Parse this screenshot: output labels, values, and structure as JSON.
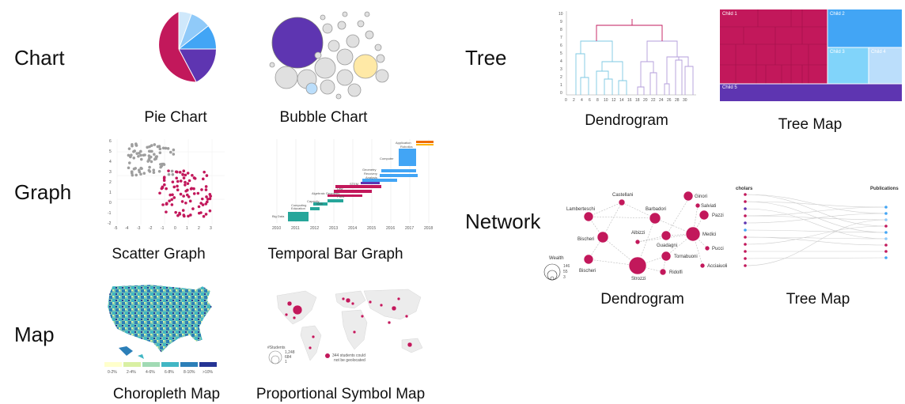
{
  "categories": {
    "chart": "Chart",
    "graph": "Graph",
    "map": "Map",
    "tree": "Tree",
    "network": "Network"
  },
  "captions": {
    "pie": "Pie Chart",
    "bubble": "Bubble Chart",
    "scatter": "Scatter Graph",
    "temporal": "Temporal Bar Graph",
    "choropleth": "Choropleth Map",
    "proportional": "Proportional Symbol Map",
    "dendrogram": "Dendrogram",
    "treemap": "Tree Map",
    "network_dendrogram": "Dendrogram",
    "network_treemap": "Tree Map"
  },
  "colors": {
    "crimson": "#c2185b",
    "purple": "#5e35b1",
    "blue": "#42a5f5",
    "lightblue": "#90caf9",
    "gray": "#bdbdbd",
    "teal": "#26a69a",
    "orange": "#ef6c00"
  },
  "temporal": {
    "years": [
      "2010",
      "2011",
      "2012",
      "2013",
      "2014",
      "2015",
      "2016",
      "2017",
      "2018"
    ],
    "labels": [
      "Big Data",
      "Computing Education",
      "Capacity Web",
      "Algebraic Geometry Parts",
      "Law STEM",
      "Geometry Recovery Analysis",
      "Computer",
      "Application Robotics"
    ]
  },
  "choropleth": {
    "legend": [
      "0-2%",
      "2-4%",
      "4-6%",
      "6-8%",
      "8-10%",
      ">10%"
    ]
  },
  "proportional": {
    "legend_title": "#Students",
    "legend_values": [
      "1,248",
      "684",
      "1"
    ],
    "note": "344 students could not be geolocated"
  },
  "dendrogram": {
    "y_ticks": [
      "10",
      "9",
      "8",
      "7",
      "6",
      "5",
      "4",
      "3",
      "2",
      "1",
      "0"
    ],
    "x_ticks": [
      "0",
      "2",
      "4",
      "6",
      "8",
      "10",
      "12",
      "14",
      "16",
      "18",
      "20",
      "22",
      "24",
      "26",
      "28",
      "30"
    ]
  },
  "treemap": {
    "labels": [
      "Child 1",
      "Child 2",
      "Child 3",
      "Child 4",
      "Child 5"
    ]
  },
  "network": {
    "nodes": [
      "Castellani",
      "Ginori",
      "Lamberteschi",
      "Barbadori",
      "Salviati",
      "Pazzi",
      "Albizzi",
      "Guadagni",
      "Medici",
      "Bischeri",
      "Tornabuoni",
      "Pucci",
      "Strozzi",
      "Ridolfi",
      "Acciaiuoli",
      "Bischeri"
    ],
    "legend_title": "Wealth",
    "legend_values": [
      "146",
      "55",
      "3"
    ]
  },
  "bipartite": {
    "left": "cholars",
    "right": "Publications"
  }
}
